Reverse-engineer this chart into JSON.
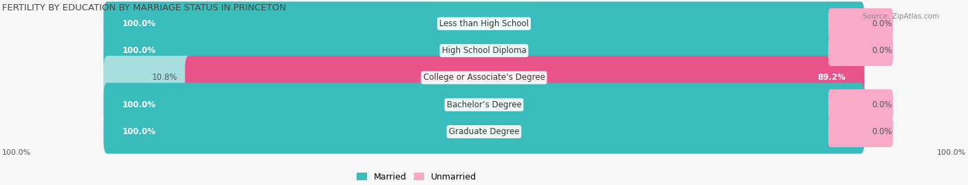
{
  "title": "FERTILITY BY EDUCATION BY MARRIAGE STATUS IN PRINCETON",
  "source": "Source: ZipAtlas.com",
  "categories": [
    "Less than High School",
    "High School Diploma",
    "College or Associate’s Degree",
    "Bachelor’s Degree",
    "Graduate Degree"
  ],
  "married_pct": [
    100.0,
    100.0,
    10.8,
    100.0,
    100.0
  ],
  "unmarried_pct": [
    0.0,
    0.0,
    89.2,
    0.0,
    0.0
  ],
  "married_color_strong": "#3bbcbc",
  "married_color_light": "#a8dede",
  "unmarried_color_strong": "#e8538a",
  "unmarried_color_light": "#f9aac8",
  "bar_bg_color": "#e8e8e8",
  "fig_bg_color": "#f7f7f7",
  "bar_height": 0.62,
  "label_fontsize": 8.5,
  "title_fontsize": 9.5,
  "legend_fontsize": 9,
  "axis_label_fontsize": 8,
  "left_axis_label": "100.0%",
  "right_axis_label": "100.0%"
}
